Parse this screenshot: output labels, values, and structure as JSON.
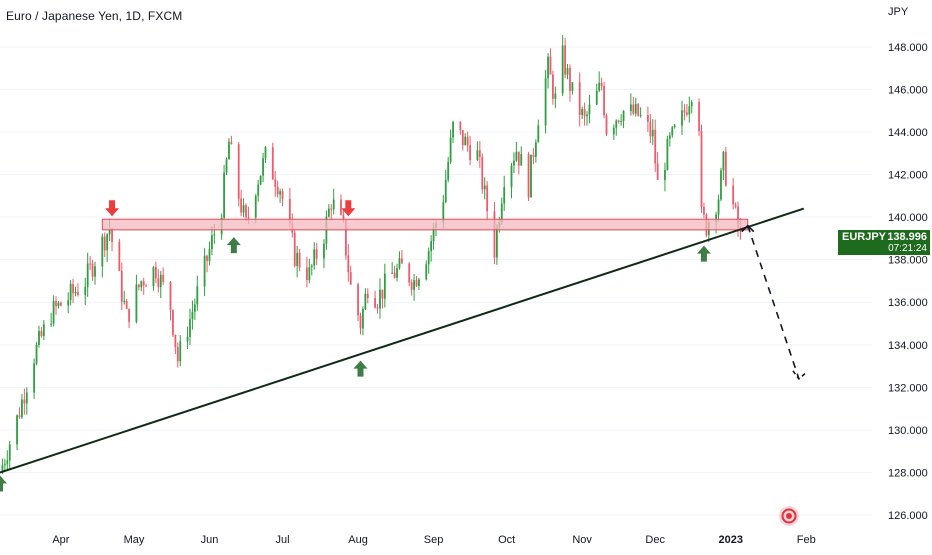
{
  "header": {
    "title": "Euro / Japanese Yen, 1D, FXCM",
    "currency": "JPY"
  },
  "price_tag": {
    "symbol": "EURJPY",
    "price": "138.996",
    "countdown": "07:21:24",
    "color": "#1e6b1e"
  },
  "colors": {
    "up": "#26a69a",
    "up_candle": "#2e9e41",
    "down": "#f23645",
    "down_candle": "#ef5a6b",
    "zone_fill": "#f4b8bf",
    "zone_stroke": "#e04a5a",
    "trendline": "#0f2a14",
    "arrow_green": "#3f7d46",
    "arrow_red": "#ee3b3b"
  },
  "chart_data": {
    "type": "candlestick",
    "title": "Euro / Japanese Yen, 1D, FXCM",
    "ylabel": "JPY",
    "ylim": [
      125.3,
      150.2
    ],
    "y_ticks": [
      "126.000",
      "128.000",
      "130.000",
      "132.000",
      "134.000",
      "136.000",
      "138.000",
      "140.000",
      "142.000",
      "144.000",
      "146.000",
      "148.000"
    ],
    "x_ticks": [
      {
        "label": "Apr",
        "date": "2022-04-01"
      },
      {
        "label": "May",
        "date": "2022-05-01"
      },
      {
        "label": "Jun",
        "date": "2022-06-01"
      },
      {
        "label": "Jul",
        "date": "2022-07-01"
      },
      {
        "label": "Aug",
        "date": "2022-08-01"
      },
      {
        "label": "Sep",
        "date": "2022-09-01"
      },
      {
        "label": "Oct",
        "date": "2022-10-01"
      },
      {
        "label": "Nov",
        "date": "2022-11-01"
      },
      {
        "label": "Dec",
        "date": "2022-12-01"
      },
      {
        "label": "2023",
        "date": "2023-01-01",
        "bold": true
      },
      {
        "label": "Feb",
        "date": "2023-02-01"
      }
    ],
    "xlim": [
      "2022-03-07",
      "2023-02-28"
    ],
    "close_path": [
      [
        "2022-03-07",
        128.0
      ],
      [
        "2022-03-14",
        130.5
      ],
      [
        "2022-03-21",
        133.5
      ],
      [
        "2022-03-28",
        135.5
      ],
      [
        "2022-04-04",
        136.2
      ],
      [
        "2022-04-11",
        137.0
      ],
      [
        "2022-04-18",
        138.8
      ],
      [
        "2022-04-21",
        139.5
      ],
      [
        "2022-04-25",
        137.0
      ],
      [
        "2022-04-28",
        135.3
      ],
      [
        "2022-05-04",
        137.0
      ],
      [
        "2022-05-10",
        137.6
      ],
      [
        "2022-05-16",
        135.8
      ],
      [
        "2022-05-19",
        133.3
      ],
      [
        "2022-05-24",
        135.2
      ],
      [
        "2022-05-30",
        137.6
      ],
      [
        "2022-06-06",
        140.5
      ],
      [
        "2022-06-09",
        143.5
      ],
      [
        "2022-06-13",
        141.0
      ],
      [
        "2022-06-16",
        139.6
      ],
      [
        "2022-06-20",
        141.5
      ],
      [
        "2022-06-24",
        142.8
      ],
      [
        "2022-06-30",
        141.4
      ],
      [
        "2022-07-06",
        138.2
      ],
      [
        "2022-07-12",
        137.3
      ],
      [
        "2022-07-18",
        139.2
      ],
      [
        "2022-07-21",
        140.8
      ],
      [
        "2022-07-26",
        139.4
      ],
      [
        "2022-07-29",
        136.7
      ],
      [
        "2022-08-02",
        135.0
      ],
      [
        "2022-08-05",
        136.8
      ],
      [
        "2022-08-09",
        136.2
      ],
      [
        "2022-08-15",
        137.3
      ],
      [
        "2022-08-19",
        137.6
      ],
      [
        "2022-08-24",
        137.0
      ],
      [
        "2022-08-30",
        138.5
      ],
      [
        "2022-09-05",
        141.0
      ],
      [
        "2022-09-09",
        144.2
      ],
      [
        "2022-09-14",
        143.5
      ],
      [
        "2022-09-19",
        142.9
      ],
      [
        "2022-09-22",
        141.0
      ],
      [
        "2022-09-26",
        138.5
      ],
      [
        "2022-09-30",
        142.0
      ],
      [
        "2022-10-05",
        143.2
      ],
      [
        "2022-10-10",
        141.5
      ],
      [
        "2022-10-14",
        144.8
      ],
      [
        "2022-10-18",
        147.0
      ],
      [
        "2022-10-21",
        145.5
      ],
      [
        "2022-10-24",
        147.5
      ],
      [
        "2022-10-28",
        145.8
      ],
      [
        "2022-11-02",
        144.5
      ],
      [
        "2022-11-09",
        146.2
      ],
      [
        "2022-11-11",
        144.2
      ],
      [
        "2022-11-17",
        145.0
      ],
      [
        "2022-11-24",
        144.8
      ],
      [
        "2022-11-30",
        143.8
      ],
      [
        "2022-12-02",
        141.5
      ],
      [
        "2022-12-07",
        143.5
      ],
      [
        "2022-12-12",
        144.6
      ],
      [
        "2022-12-16",
        146.0
      ],
      [
        "2022-12-19",
        144.5
      ],
      [
        "2022-12-20",
        140.0
      ],
      [
        "2022-12-22",
        139.6
      ],
      [
        "2022-12-27",
        141.0
      ],
      [
        "2022-12-29",
        142.5
      ],
      [
        "2023-01-02",
        140.5
      ],
      [
        "2023-01-05",
        139.0
      ]
    ],
    "resistance_zone": {
      "from": "2022-04-18",
      "to": "2023-01-08",
      "low": 139.4,
      "high": 139.9
    },
    "trendline": {
      "from": [
        "2022-03-07",
        128.0
      ],
      "to": [
        "2023-01-31",
        140.4
      ]
    },
    "projection": {
      "from": [
        "2023-01-08",
        139.6
      ],
      "to": [
        "2023-01-29",
        132.4
      ]
    },
    "support_arrows": [
      {
        "date": "2022-03-07",
        "price": 128.0
      },
      {
        "date": "2022-06-11",
        "price": 139.2
      },
      {
        "date": "2022-08-02",
        "price": 133.4
      },
      {
        "date": "2022-12-21",
        "price": 138.8
      }
    ],
    "resistance_arrows": [
      {
        "date": "2022-04-22",
        "price": 139.9
      },
      {
        "date": "2022-07-28",
        "price": 139.9
      }
    ],
    "last_price": 138.996
  }
}
